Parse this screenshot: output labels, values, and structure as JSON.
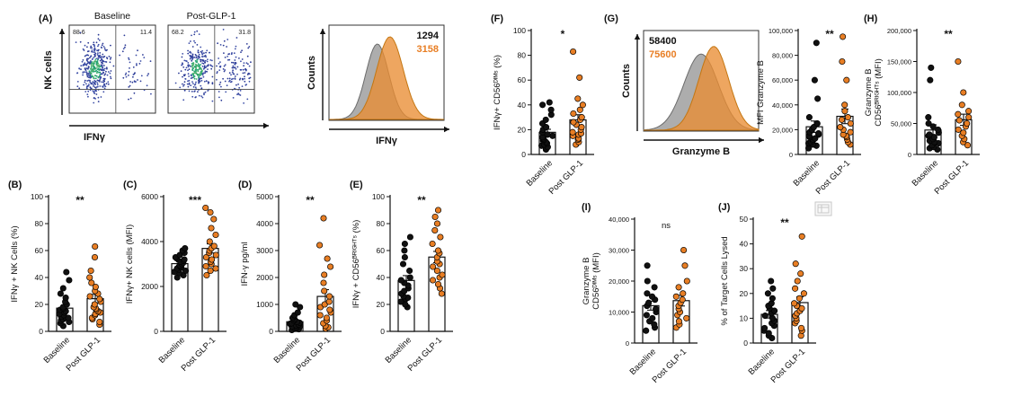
{
  "figure": {
    "colors": {
      "baseline": "#111111",
      "post_glp1": "#E87E24",
      "hist_gray": "#919191",
      "hist_orange": "#E98D33",
      "flow_dot_blue": "#3a4ca6",
      "flow_dot_teal": "#1fa173"
    },
    "categories": [
      "Baseline",
      "Post GLP-1"
    ]
  },
  "chart_data": [
    {
      "id": "A",
      "panel_label": "(A)",
      "type": "scatter",
      "subtype": "flow-cytometry-dot-plot-pair",
      "ylabel": "NK cells",
      "xlabel": "IFNγ",
      "plots": [
        {
          "title": "Baseline",
          "upper_left_pct": "88.6",
          "upper_right_pct": "11.4"
        },
        {
          "title": "Post-GLP-1",
          "upper_left_pct": "68.2",
          "upper_right_pct": "31.8"
        }
      ]
    },
    {
      "id": "A_hist",
      "type": "area",
      "subtype": "flow-histogram-overlay",
      "ylabel": "Counts",
      "xlabel": "IFNγ",
      "series": [
        {
          "name": "Baseline",
          "mfi_label": "1294",
          "color": "#111111"
        },
        {
          "name": "Post-GLP-1",
          "mfi_label": "3158",
          "color": "#E87E24"
        }
      ]
    },
    {
      "id": "G_hist",
      "panel_label": "(G)",
      "type": "area",
      "subtype": "flow-histogram-overlay",
      "ylabel": "Counts",
      "xlabel": "Granzyme B",
      "series": [
        {
          "name": "Baseline",
          "mfi_label": "58400",
          "color": "#111111"
        },
        {
          "name": "Post-GLP-1",
          "mfi_label": "75600",
          "color": "#E87E24"
        }
      ]
    },
    {
      "id": "B",
      "panel_label": "(B)",
      "type": "scatter",
      "subtype": "dot-bar",
      "ylabel": "IFNγ + NK Cells (%)",
      "ylim": [
        0,
        100
      ],
      "yticks": [
        0,
        20,
        40,
        60,
        80,
        100
      ],
      "categories": [
        "Baseline",
        "Post GLP-1"
      ],
      "significance": "**",
      "series": [
        {
          "name": "Baseline",
          "color": "#111111",
          "values": [
            4,
            6,
            7,
            8,
            9,
            10,
            10,
            11,
            12,
            13,
            14,
            15,
            16,
            17,
            18,
            20,
            22,
            25,
            28,
            32,
            38,
            44
          ]
        },
        {
          "name": "Post GLP-1",
          "color": "#E87E24",
          "values": [
            5,
            7,
            9,
            10,
            12,
            13,
            14,
            15,
            16,
            17,
            18,
            20,
            22,
            24,
            26,
            28,
            30,
            33,
            36,
            40,
            45,
            55,
            63
          ]
        }
      ]
    },
    {
      "id": "C",
      "panel_label": "(C)",
      "type": "scatter",
      "subtype": "dot-bar",
      "ylabel": "IFNγ+ NK cells (MFI)",
      "ylim": [
        0,
        6000
      ],
      "yticks": [
        0,
        2000,
        4000,
        6000
      ],
      "categories": [
        "Baseline",
        "Post GLP-1"
      ],
      "significance": "***",
      "series": [
        {
          "name": "Baseline",
          "color": "#111111",
          "values": [
            2400,
            2500,
            2600,
            2650,
            2700,
            2750,
            2800,
            2850,
            2900,
            2950,
            3000,
            3050,
            3100,
            3150,
            3200,
            3250,
            3300,
            3400,
            3500,
            3600,
            3700
          ]
        },
        {
          "name": "Post GLP-1",
          "color": "#E87E24",
          "values": [
            2500,
            2700,
            2800,
            2900,
            3000,
            3100,
            3200,
            3300,
            3400,
            3500,
            3600,
            3700,
            3800,
            4000,
            4300,
            4600,
            5000,
            5300,
            5500
          ]
        }
      ]
    },
    {
      "id": "D",
      "panel_label": "(D)",
      "type": "scatter",
      "subtype": "dot-bar",
      "ylabel": "IFN-γ pg/ml",
      "ylim": [
        0,
        5000
      ],
      "yticks": [
        0,
        1000,
        2000,
        3000,
        4000,
        5000
      ],
      "categories": [
        "Baseline",
        "Post GLP-1"
      ],
      "significance": "**",
      "series": [
        {
          "name": "Baseline",
          "color": "#111111",
          "values": [
            50,
            80,
            100,
            120,
            150,
            180,
            200,
            220,
            250,
            280,
            300,
            320,
            350,
            400,
            450,
            500,
            600,
            700,
            900,
            1000
          ]
        },
        {
          "name": "Post GLP-1",
          "color": "#E87E24",
          "values": [
            100,
            150,
            200,
            300,
            400,
            500,
            600,
            700,
            800,
            900,
            1000,
            1100,
            1300,
            1500,
            1800,
            2100,
            2400,
            2700,
            3200,
            4200
          ]
        }
      ]
    },
    {
      "id": "E",
      "panel_label": "(E)",
      "type": "scatter",
      "subtype": "dot-bar",
      "ylabel": "IFNγ + CD56ᴮᴿᴵᴳᴴᵀˢ (%)",
      "ylim": [
        0,
        100
      ],
      "yticks": [
        0,
        20,
        40,
        60,
        80,
        100
      ],
      "categories": [
        "Baseline",
        "Post GLP-1"
      ],
      "significance": "**",
      "series": [
        {
          "name": "Baseline",
          "color": "#111111",
          "values": [
            18,
            20,
            22,
            24,
            25,
            26,
            28,
            30,
            32,
            34,
            36,
            38,
            40,
            45,
            50,
            55,
            60,
            65,
            70
          ]
        },
        {
          "name": "Post GLP-1",
          "color": "#E87E24",
          "values": [
            28,
            32,
            35,
            38,
            40,
            42,
            45,
            48,
            50,
            52,
            55,
            58,
            60,
            65,
            70,
            75,
            80,
            85,
            90
          ]
        }
      ]
    },
    {
      "id": "F",
      "panel_label": "(F)",
      "type": "scatter",
      "subtype": "dot-bar",
      "ylabel": "IFNγ+ CD56ᴰᴵᴹˢ (%)",
      "ylim": [
        0,
        100
      ],
      "yticks": [
        0,
        20,
        40,
        60,
        80,
        100
      ],
      "categories": [
        "Baseline",
        "Post GLP-1"
      ],
      "significance": "*",
      "series": [
        {
          "name": "Baseline",
          "color": "#111111",
          "values": [
            4,
            5,
            6,
            7,
            8,
            9,
            10,
            11,
            12,
            13,
            14,
            15,
            16,
            18,
            20,
            22,
            25,
            28,
            32,
            36,
            40,
            42
          ]
        },
        {
          "name": "Post GLP-1",
          "color": "#E87E24",
          "values": [
            8,
            10,
            12,
            13,
            15,
            16,
            17,
            18,
            20,
            22,
            24,
            26,
            28,
            30,
            33,
            36,
            40,
            45,
            62,
            83
          ]
        }
      ]
    },
    {
      "id": "G",
      "panel_label": "",
      "type": "scatter",
      "subtype": "dot-bar",
      "ylabel": "MFI Granzyme B",
      "ylim": [
        0,
        100000
      ],
      "yticks": [
        0,
        20000,
        40000,
        60000,
        80000,
        100000
      ],
      "categories": [
        "Baseline",
        "Post GLP-1"
      ],
      "significance": "**",
      "series": [
        {
          "name": "Baseline",
          "color": "#111111",
          "values": [
            5000,
            7000,
            8000,
            9000,
            10000,
            11000,
            12000,
            13000,
            14000,
            15000,
            16000,
            17000,
            18000,
            20000,
            22000,
            25000,
            30000,
            45000,
            60000,
            90000
          ]
        },
        {
          "name": "Post GLP-1",
          "color": "#E87E24",
          "values": [
            8000,
            10000,
            12000,
            14000,
            15000,
            16000,
            18000,
            20000,
            22000,
            25000,
            28000,
            30000,
            35000,
            40000,
            60000,
            75000,
            95000
          ]
        }
      ]
    },
    {
      "id": "H",
      "panel_label": "(H)",
      "type": "scatter",
      "subtype": "dot-bar",
      "ylabel": [
        "Granzyme B",
        "CD56ᴮᴿᴵᴳᴴᵀˢ (MFI)"
      ],
      "ylim": [
        0,
        200000
      ],
      "yticks": [
        0,
        50000,
        100000,
        150000,
        200000
      ],
      "categories": [
        "Baseline",
        "Post GLP-1"
      ],
      "significance": "**",
      "series": [
        {
          "name": "Baseline",
          "color": "#111111",
          "values": [
            8000,
            10000,
            12000,
            15000,
            18000,
            20000,
            22000,
            25000,
            28000,
            30000,
            32000,
            35000,
            40000,
            45000,
            50000,
            60000,
            120000,
            140000
          ]
        },
        {
          "name": "Post GLP-1",
          "color": "#E87E24",
          "values": [
            15000,
            20000,
            25000,
            30000,
            35000,
            40000,
            45000,
            50000,
            55000,
            60000,
            65000,
            70000,
            80000,
            100000,
            150000
          ]
        }
      ]
    },
    {
      "id": "I",
      "panel_label": "(I)",
      "type": "scatter",
      "subtype": "dot-bar",
      "ylabel": [
        "Granzyme B",
        "CD56ᴰᴵᴹˢ (MFI)"
      ],
      "ylim": [
        0,
        40000
      ],
      "yticks": [
        0,
        10000,
        20000,
        30000,
        40000
      ],
      "categories": [
        "Baseline",
        "Post GLP-1"
      ],
      "significance": "ns",
      "series": [
        {
          "name": "Baseline",
          "color": "#111111",
          "values": [
            4000,
            5000,
            6000,
            7000,
            8000,
            9000,
            10000,
            11000,
            12000,
            13000,
            14000,
            15000,
            16000,
            18000,
            20000,
            25000
          ]
        },
        {
          "name": "Post GLP-1",
          "color": "#E87E24",
          "values": [
            5000,
            6000,
            7000,
            8000,
            9000,
            10000,
            11000,
            12000,
            13000,
            14000,
            15000,
            16000,
            18000,
            20000,
            25000,
            30000
          ]
        }
      ]
    },
    {
      "id": "J",
      "panel_label": "(J)",
      "type": "scatter",
      "subtype": "dot-bar",
      "ylabel": "% of Target Cells Lysed",
      "ylim": [
        0,
        50
      ],
      "yticks": [
        0,
        10,
        20,
        30,
        40,
        50
      ],
      "categories": [
        "Baseline",
        "Post GLP-1"
      ],
      "significance": "**",
      "series": [
        {
          "name": "Baseline",
          "color": "#111111",
          "values": [
            2,
            3,
            4,
            5,
            6,
            7,
            8,
            9,
            10,
            11,
            12,
            13,
            14,
            15,
            16,
            18,
            20,
            22,
            25
          ]
        },
        {
          "name": "Post GLP-1",
          "color": "#E87E24",
          "values": [
            3,
            5,
            6,
            8,
            9,
            10,
            11,
            12,
            13,
            14,
            15,
            16,
            18,
            20,
            22,
            25,
            28,
            32,
            43
          ]
        }
      ]
    }
  ]
}
